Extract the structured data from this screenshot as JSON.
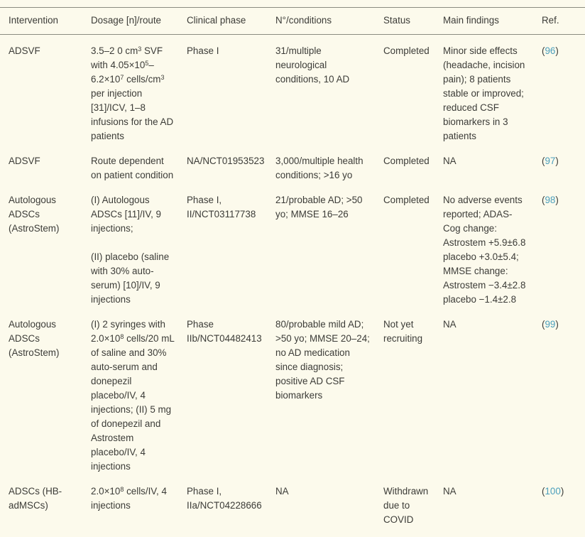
{
  "colors": {
    "background": "#fcfaec",
    "text": "#3c3c38",
    "border_line": "#8b8b80",
    "ref_link": "#4b9fbc"
  },
  "table": {
    "columns": [
      {
        "key": "intervention",
        "label": "Intervention"
      },
      {
        "key": "dosage",
        "label": "Dosage [n]/route"
      },
      {
        "key": "clinical_phase",
        "label": "Clinical phase"
      },
      {
        "key": "n_conditions",
        "label": "N°/conditions"
      },
      {
        "key": "status",
        "label": "Status"
      },
      {
        "key": "main_findings",
        "label": "Main findings"
      },
      {
        "key": "ref",
        "label": "Ref."
      }
    ],
    "rows": [
      {
        "intervention": "ADSVF",
        "dosage": [
          "3.5–2 0 cm^{3} SVF with 4.05×10^{5}–6.2×10^{7} cells/cm^{3} per injection [31]/ICV, 1–8 infusions for the AD patients"
        ],
        "clinical_phase": "Phase I",
        "n_conditions": "31/multiple neurological conditions, 10 AD",
        "status": "Completed",
        "main_findings": "Minor side effects (headache, incision pain); 8 patients stable or improved; reduced CSF biomarkers in 3 patients",
        "ref": {
          "open": "(",
          "number": "96",
          "close": ")"
        }
      },
      {
        "intervention": "ADSVF",
        "dosage": [
          "Route dependent on patient condition"
        ],
        "clinical_phase": "NA/NCT01953523",
        "n_conditions": "3,000/multiple health conditions; >16 yo",
        "status": "Completed",
        "main_findings": "NA",
        "ref": {
          "open": "(",
          "number": "97",
          "close": ")"
        }
      },
      {
        "intervention": "Autologous ADSCs (AstroStem)",
        "dosage": [
          "(I) Autologous ADSCs [11]/IV, 9 injections;",
          "(II) placebo (saline with 30% auto-serum) [10]/IV, 9 injections"
        ],
        "clinical_phase": "Phase I, II/NCT03117738",
        "n_conditions": "21/probable AD; >50 yo; MMSE 16–26",
        "status": "Completed",
        "main_findings": "No adverse events reported; ADAS-Cog change: Astrostem +5.9±6.8 placebo +3.0±5.4; MMSE change: Astrostem −3.4±2.8 placebo −1.4±2.8",
        "ref": {
          "open": "(",
          "number": "98",
          "close": ")"
        }
      },
      {
        "intervention": "Autologous ADSCs (AstroStem)",
        "dosage": [
          "(I) 2 syringes with 2.0×10^{8} cells/20 mL of saline and 30% auto-serum and donepezil placebo/IV, 4 injections; (II) 5 mg of donepezil and Astrostem placebo/IV, 4 injections"
        ],
        "clinical_phase": "Phase IIb/NCT04482413",
        "n_conditions": "80/probable mild AD; >50 yo; MMSE 20–24; no AD medication since diagnosis; positive AD CSF biomarkers",
        "status": "Not yet recruiting",
        "main_findings": "NA",
        "ref": {
          "open": "(",
          "number": "99",
          "close": ")"
        }
      },
      {
        "intervention": "ADSCs (HB-adMSCs)",
        "dosage": [
          "2.0×10^{8} cells/IV, 4 injections"
        ],
        "clinical_phase": "Phase I, IIa/NCT04228666",
        "n_conditions": "NA",
        "status": "Withdrawn due to COVID",
        "main_findings": "NA",
        "ref": {
          "open": "(",
          "number": "100",
          "close": ")"
        }
      }
    ]
  }
}
